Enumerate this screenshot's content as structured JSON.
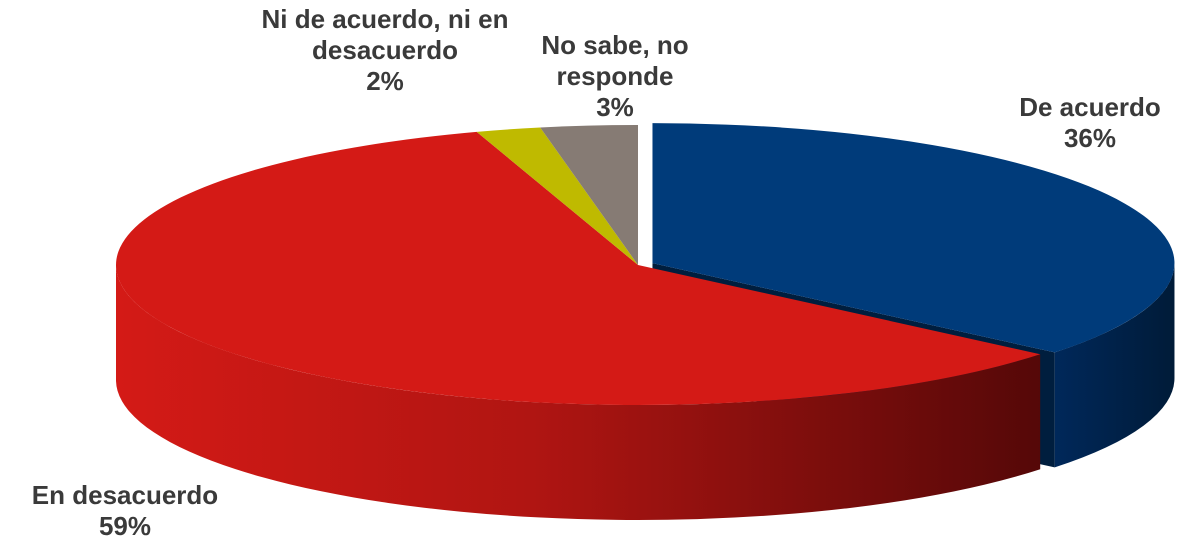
{
  "chart_data": {
    "type": "pie",
    "categories": [
      "De acuerdo",
      "En desacuerdo",
      "Ni de acuerdo, ni en desacuerdo",
      "No sabe, no responde"
    ],
    "values": [
      36,
      59,
      2,
      3
    ],
    "value_labels": [
      "36%",
      "59%",
      "2%",
      "3%"
    ],
    "colors": [
      "#003b7a",
      "#d41a16",
      "#bfba00",
      "#867b74"
    ]
  }
}
